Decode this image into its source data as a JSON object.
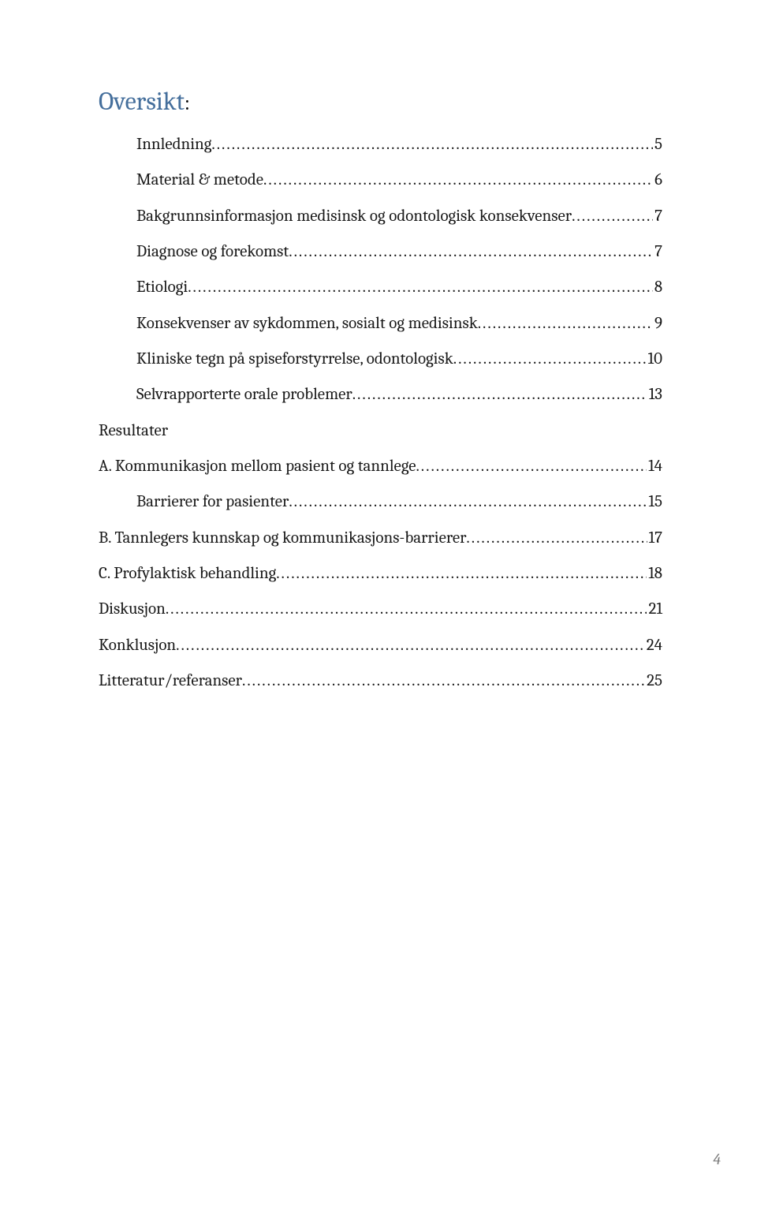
{
  "colors": {
    "title": "#456f9c",
    "body": "#1a1a1a",
    "page_number": "#808080",
    "background": "#ffffff"
  },
  "typography": {
    "title_fontsize_pt": 24,
    "body_fontsize_pt": 16,
    "font_family": "Cambria"
  },
  "title": {
    "text": "Oversikt",
    "colon": ":"
  },
  "toc": {
    "items": [
      {
        "indent": 1,
        "label": "Innledning",
        "page": "5"
      },
      {
        "indent": 1,
        "label": "Material & metode",
        "page": "6"
      },
      {
        "indent": 1,
        "label": "Bakgrunnsinformasjon medisinsk og odontologisk konsekvenser",
        "page": "7"
      },
      {
        "indent": 1,
        "label": "Diagnose og forekomst",
        "page": "7"
      },
      {
        "indent": 1,
        "label": "Etiologi",
        "page": "8"
      },
      {
        "indent": 1,
        "label": "Konsekvenser av sykdommen, sosialt og medisinsk",
        "page": "9"
      },
      {
        "indent": 1,
        "label": "Kliniske tegn på spiseforstyrrelse, odontologisk",
        "page": "10"
      },
      {
        "indent": 1,
        "label": "Selvrapporterte orale problemer",
        "page": "13"
      }
    ],
    "section_a_header": "Resultater",
    "section_a": [
      {
        "indent": 0,
        "label": "A. Kommunikasjon mellom pasient og tannlege",
        "page": "14"
      },
      {
        "indent": 1,
        "label": "Barrierer for pasienter",
        "page": "15"
      },
      {
        "indent": 0,
        "label": "B. Tannlegers kunnskap og  kommunikasjons-barrierer",
        "page": "17"
      },
      {
        "indent": 0,
        "label": "C. Profylaktisk behandling",
        "page": "18"
      },
      {
        "indent": 0,
        "label": "Diskusjon",
        "page": "21"
      },
      {
        "indent": 0,
        "label": "Konklusjon",
        "page": "24"
      },
      {
        "indent": 0,
        "label": "Litteratur/referanser",
        "page": "25"
      }
    ]
  },
  "page_number": "4"
}
